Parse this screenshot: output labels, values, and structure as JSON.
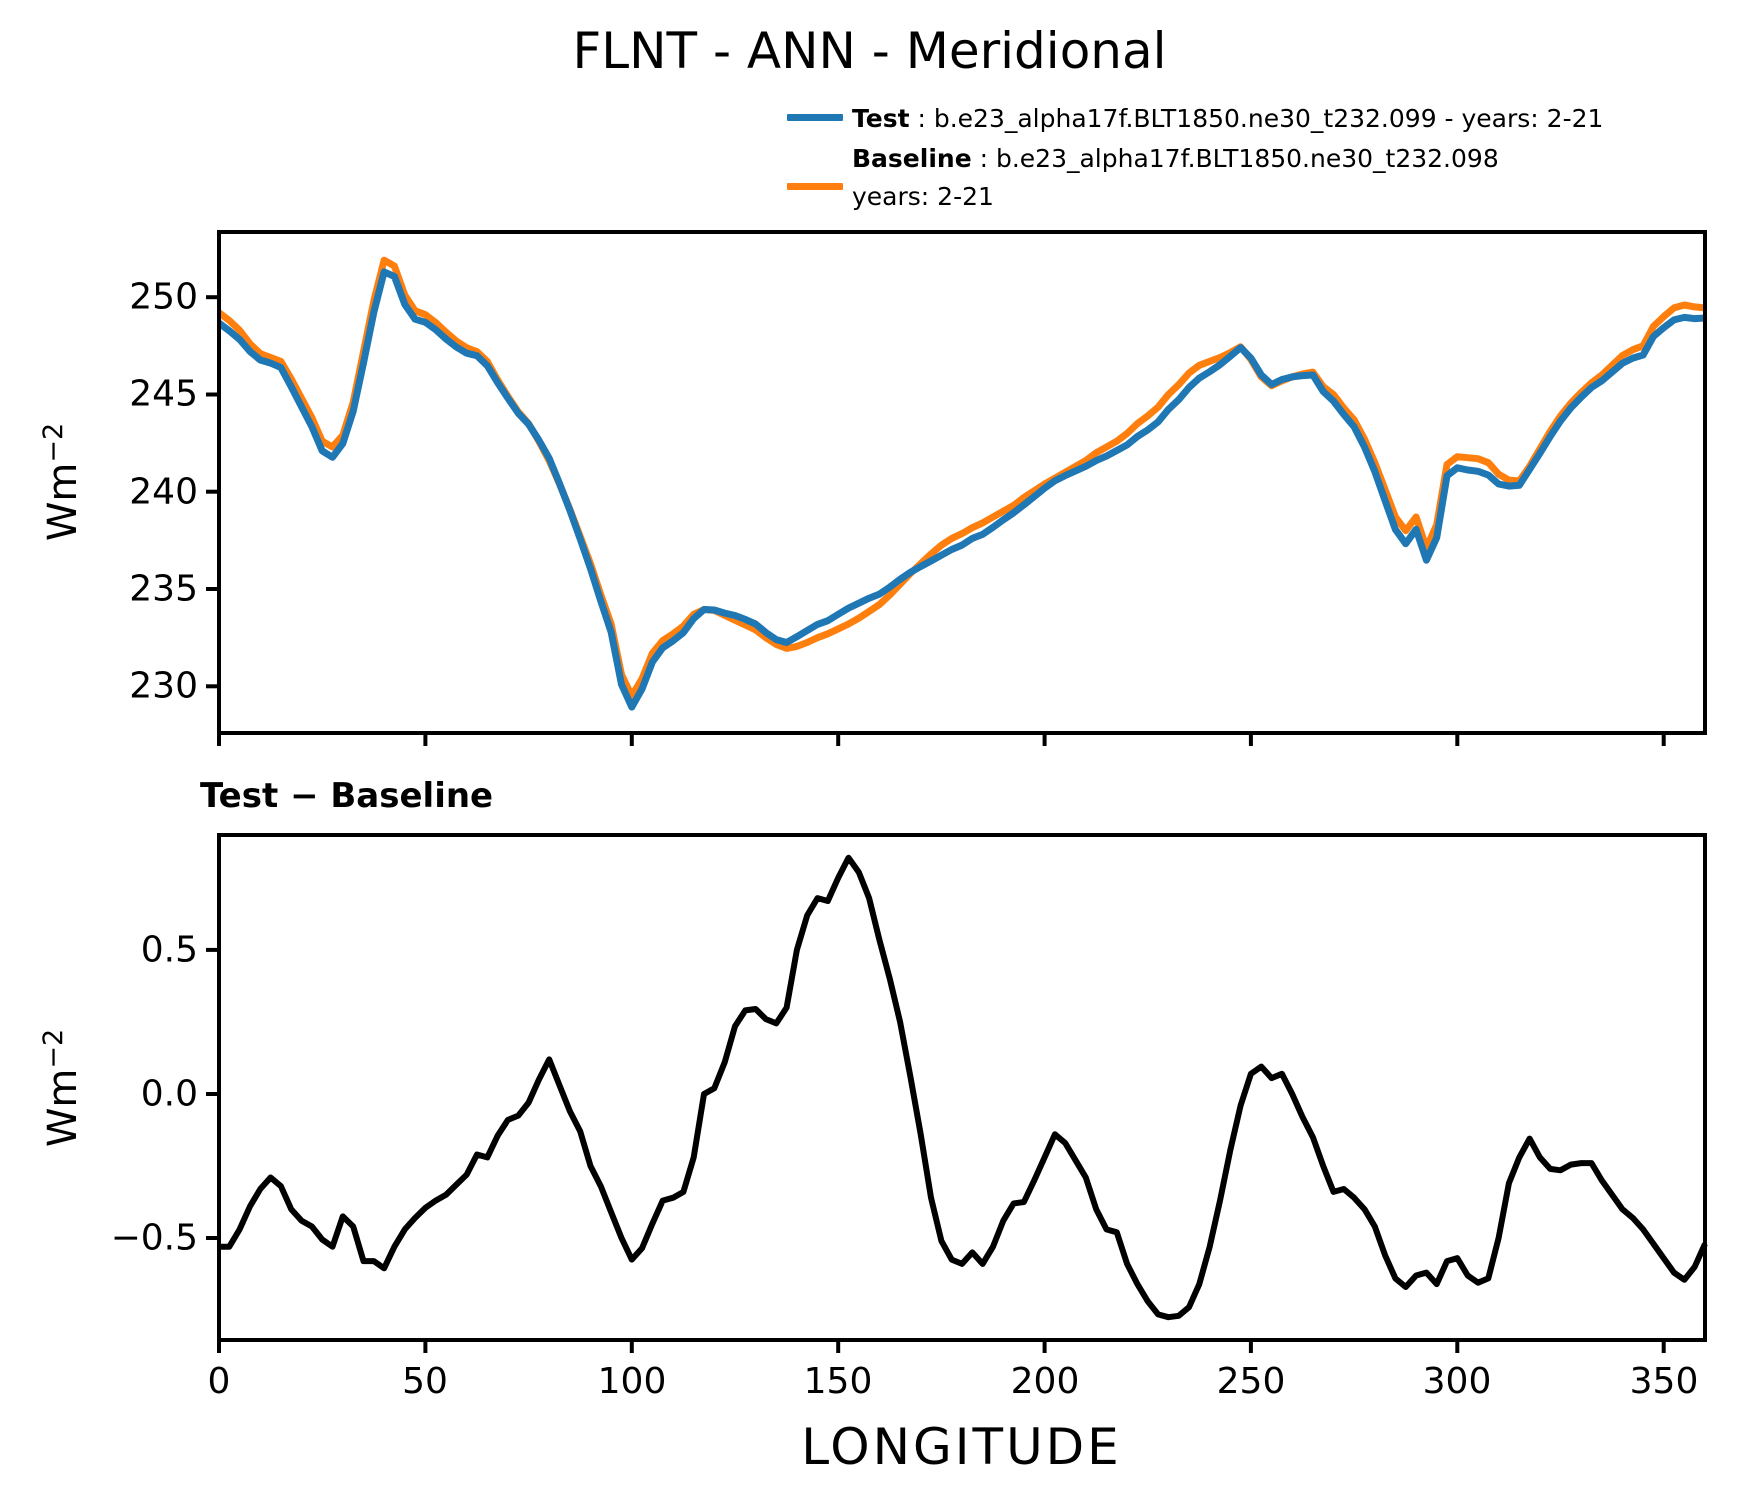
{
  "title": "FLNT - ANN - Meridional",
  "subtitle": "Test − Baseline",
  "legend": {
    "test": {
      "label_bold": "Test",
      "label_rest": " : b.e23_alpha17f.BLT1850.ne30_t232.099 - years: 2-21",
      "color": "#1f77b4"
    },
    "baseline": {
      "label_bold": "Baseline",
      "label_rest": " : b.e23_alpha17f.BLT1850.ne30_t232.098",
      "label_line2": "years: 2-21",
      "color": "#ff7f0e"
    }
  },
  "axes": {
    "top": {
      "ylabel": "Wm",
      "ylabel_sup": "−2"
    },
    "bottom": {
      "ylabel": "Wm",
      "ylabel_sup": "−2",
      "xlabel": "LONGITUDE"
    }
  },
  "chart_data": [
    {
      "type": "line",
      "title": "FLNT - ANN - Meridional",
      "xlabel": "",
      "ylabel": "Wm^-2",
      "xlim": [
        0,
        360
      ],
      "ylim": [
        227.6,
        253.35
      ],
      "grid": false,
      "legend_position": "top-right-outside",
      "yticks": [
        250,
        245,
        240,
        235,
        230
      ],
      "ytick_labels": [
        "250",
        "245",
        "240",
        "235",
        "230"
      ],
      "xticks": [
        0,
        50,
        100,
        150,
        200,
        250,
        300,
        350
      ],
      "xtick_labels": [],
      "x": [
        0,
        2.5,
        5,
        7.5,
        10,
        12.5,
        15,
        17.5,
        20,
        22.5,
        25,
        27.5,
        30,
        32.5,
        35,
        37.5,
        40,
        42.5,
        45,
        47.5,
        50,
        52.5,
        55,
        57.5,
        60,
        62.5,
        65,
        67.5,
        70,
        72.5,
        75,
        77.5,
        80,
        82.5,
        85,
        87.5,
        90,
        92.5,
        95,
        97.5,
        100,
        102.5,
        105,
        107.5,
        110,
        112.5,
        115,
        117.5,
        120,
        122.5,
        125,
        127.5,
        130,
        132.5,
        135,
        137.5,
        140,
        142.5,
        145,
        147.5,
        150,
        152.5,
        155,
        157.5,
        160,
        162.5,
        165,
        167.5,
        170,
        172.5,
        175,
        177.5,
        180,
        182.5,
        185,
        187.5,
        190,
        192.5,
        195,
        197.5,
        200,
        202.5,
        205,
        207.5,
        210,
        212.5,
        215,
        217.5,
        220,
        222.5,
        225,
        227.5,
        230,
        232.5,
        235,
        237.5,
        240,
        242.5,
        245,
        247.5,
        250,
        252.5,
        255,
        257.5,
        260,
        262.5,
        265,
        267.5,
        270,
        272.5,
        275,
        277.5,
        280,
        282.5,
        285,
        287.5,
        290,
        292.5,
        295,
        297.5,
        300,
        302.5,
        305,
        307.5,
        310,
        312.5,
        315,
        317.5,
        320,
        322.5,
        325,
        327.5,
        330,
        332.5,
        335,
        337.5,
        340,
        342.5,
        345,
        347.5,
        350,
        352.5,
        355,
        357.5,
        360
      ],
      "series": [
        {
          "name": "Test",
          "color": "#1f77b4",
          "values": [
            248.67,
            248.27,
            247.83,
            247.21,
            246.77,
            246.61,
            246.38,
            245.4,
            244.36,
            243.34,
            242.1,
            241.77,
            242.48,
            244.14,
            246.62,
            249.22,
            251.3,
            251.07,
            249.63,
            248.87,
            248.71,
            248.33,
            247.85,
            247.44,
            247.12,
            246.99,
            246.48,
            245.61,
            244.81,
            244.03,
            243.47,
            242.65,
            241.72,
            240.43,
            239.04,
            237.57,
            236.05,
            234.38,
            232.79,
            230.1,
            228.93,
            229.87,
            231.25,
            231.98,
            232.34,
            232.76,
            233.48,
            233.95,
            233.92,
            233.76,
            233.64,
            233.44,
            233.2,
            232.76,
            232.4,
            232.25,
            232.55,
            232.87,
            233.18,
            233.37,
            233.7,
            234.02,
            234.27,
            234.53,
            234.74,
            235.1,
            235.5,
            235.86,
            236.16,
            236.44,
            236.74,
            237.03,
            237.26,
            237.6,
            237.81,
            238.17,
            238.56,
            238.92,
            239.33,
            239.75,
            240.18,
            240.56,
            240.83,
            241.07,
            241.31,
            241.6,
            241.83,
            242.12,
            242.41,
            242.84,
            243.18,
            243.59,
            244.23,
            244.73,
            245.36,
            245.84,
            246.17,
            246.53,
            246.96,
            247.41,
            246.87,
            246.0,
            245.51,
            245.77,
            245.9,
            245.97,
            246.0,
            245.15,
            244.66,
            243.97,
            243.34,
            242.3,
            241.04,
            239.54,
            238.06,
            237.33,
            238.07,
            236.48,
            237.64,
            240.82,
            241.23,
            241.12,
            241.05,
            240.86,
            240.4,
            240.29,
            240.33,
            241.15,
            241.98,
            242.84,
            243.64,
            244.31,
            244.86,
            245.36,
            245.7,
            246.15,
            246.6,
            246.87,
            247.03,
            247.98,
            248.43,
            248.83,
            248.96,
            248.9,
            248.93
          ]
        },
        {
          "name": "Baseline",
          "color": "#ff7f0e",
          "values": [
            249.2,
            248.8,
            248.3,
            247.6,
            247.1,
            246.9,
            246.7,
            245.8,
            244.8,
            243.8,
            242.6,
            242.3,
            242.9,
            244.6,
            247.2,
            249.8,
            251.9,
            251.6,
            250.1,
            249.3,
            249.1,
            248.7,
            248.2,
            247.75,
            247.4,
            247.2,
            246.7,
            245.75,
            244.9,
            244.1,
            243.5,
            242.6,
            241.6,
            240.4,
            239.1,
            237.7,
            236.3,
            234.7,
            233.2,
            230.6,
            229.5,
            230.4,
            231.7,
            232.35,
            232.7,
            233.1,
            233.7,
            233.95,
            233.9,
            233.65,
            233.4,
            233.15,
            232.9,
            232.5,
            232.15,
            231.95,
            232.05,
            232.25,
            232.5,
            232.7,
            232.95,
            233.2,
            233.5,
            233.85,
            234.2,
            234.7,
            235.25,
            235.8,
            236.3,
            236.8,
            237.25,
            237.6,
            237.85,
            238.15,
            238.4,
            238.7,
            239.0,
            239.3,
            239.7,
            240.05,
            240.4,
            240.7,
            241.0,
            241.3,
            241.6,
            242.0,
            242.3,
            242.6,
            243.0,
            243.5,
            243.9,
            244.35,
            245.0,
            245.5,
            246.1,
            246.5,
            246.7,
            246.9,
            247.15,
            247.45,
            246.8,
            245.9,
            245.45,
            245.7,
            245.9,
            246.05,
            246.15,
            245.4,
            245.0,
            244.3,
            243.7,
            242.7,
            241.5,
            240.1,
            238.7,
            238.0,
            238.7,
            237.1,
            238.3,
            241.4,
            241.8,
            241.75,
            241.7,
            241.5,
            240.9,
            240.6,
            240.55,
            241.3,
            242.2,
            243.1,
            243.9,
            244.55,
            245.1,
            245.6,
            246.0,
            246.5,
            247.0,
            247.3,
            247.5,
            248.5,
            249.0,
            249.45,
            249.6,
            249.5,
            249.45
          ]
        }
      ]
    },
    {
      "type": "line",
      "title": "Test − Baseline",
      "xlabel": "LONGITUDE",
      "ylabel": "Wm^-2",
      "xlim": [
        0,
        360
      ],
      "ylim": [
        -0.854,
        0.899
      ],
      "grid": false,
      "yticks": [
        0.5,
        0.0,
        -0.5
      ],
      "ytick_labels": [
        "0.5",
        "0.0",
        "−0.5"
      ],
      "xticks": [
        0,
        50,
        100,
        150,
        200,
        250,
        300,
        350
      ],
      "xtick_labels": [
        "0",
        "50",
        "100",
        "150",
        "200",
        "250",
        "300",
        "350"
      ],
      "x": [
        0,
        2.5,
        5,
        7.5,
        10,
        12.5,
        15,
        17.5,
        20,
        22.5,
        25,
        27.5,
        30,
        32.5,
        35,
        37.5,
        40,
        42.5,
        45,
        47.5,
        50,
        52.5,
        55,
        57.5,
        60,
        62.5,
        65,
        67.5,
        70,
        72.5,
        75,
        77.5,
        80,
        82.5,
        85,
        87.5,
        90,
        92.5,
        95,
        97.5,
        100,
        102.5,
        105,
        107.5,
        110,
        112.5,
        115,
        117.5,
        120,
        122.5,
        125,
        127.5,
        130,
        132.5,
        135,
        137.5,
        140,
        142.5,
        145,
        147.5,
        150,
        152.5,
        155,
        157.5,
        160,
        162.5,
        165,
        167.5,
        170,
        172.5,
        175,
        177.5,
        180,
        182.5,
        185,
        187.5,
        190,
        192.5,
        195,
        197.5,
        200,
        202.5,
        205,
        207.5,
        210,
        212.5,
        215,
        217.5,
        220,
        222.5,
        225,
        227.5,
        230,
        232.5,
        235,
        237.5,
        240,
        242.5,
        245,
        247.5,
        250,
        252.5,
        255,
        257.5,
        260,
        262.5,
        265,
        267.5,
        270,
        272.5,
        275,
        277.5,
        280,
        282.5,
        285,
        287.5,
        290,
        292.5,
        295,
        297.5,
        300,
        302.5,
        305,
        307.5,
        310,
        312.5,
        315,
        317.5,
        320,
        322.5,
        325,
        327.5,
        330,
        332.5,
        335,
        337.5,
        340,
        342.5,
        345,
        347.5,
        350,
        352.5,
        355,
        357.5,
        360
      ],
      "series": [
        {
          "name": "Test − Baseline",
          "color": "#000000",
          "values": [
            -0.53,
            -0.53,
            -0.47,
            -0.39,
            -0.33,
            -0.29,
            -0.32,
            -0.4,
            -0.44,
            -0.46,
            -0.505,
            -0.53,
            -0.425,
            -0.46,
            -0.58,
            -0.58,
            -0.605,
            -0.53,
            -0.47,
            -0.43,
            -0.395,
            -0.37,
            -0.35,
            -0.315,
            -0.28,
            -0.21,
            -0.22,
            -0.145,
            -0.09,
            -0.075,
            -0.03,
            0.05,
            0.12,
            0.03,
            -0.06,
            -0.13,
            -0.25,
            -0.32,
            -0.41,
            -0.5,
            -0.575,
            -0.535,
            -0.45,
            -0.37,
            -0.36,
            -0.34,
            -0.22,
            0.0,
            0.02,
            0.11,
            0.235,
            0.29,
            0.295,
            0.26,
            0.245,
            0.3,
            0.5,
            0.62,
            0.68,
            0.67,
            0.75,
            0.82,
            0.77,
            0.68,
            0.535,
            0.4,
            0.25,
            0.06,
            -0.14,
            -0.36,
            -0.51,
            -0.575,
            -0.59,
            -0.55,
            -0.59,
            -0.53,
            -0.44,
            -0.38,
            -0.375,
            -0.3,
            -0.22,
            -0.14,
            -0.17,
            -0.23,
            -0.29,
            -0.4,
            -0.47,
            -0.48,
            -0.59,
            -0.66,
            -0.72,
            -0.765,
            -0.775,
            -0.77,
            -0.74,
            -0.66,
            -0.53,
            -0.37,
            -0.195,
            -0.04,
            0.07,
            0.095,
            0.055,
            0.07,
            0.0,
            -0.08,
            -0.15,
            -0.25,
            -0.34,
            -0.33,
            -0.36,
            -0.4,
            -0.46,
            -0.56,
            -0.64,
            -0.67,
            -0.63,
            -0.62,
            -0.66,
            -0.58,
            -0.57,
            -0.63,
            -0.655,
            -0.64,
            -0.5,
            -0.31,
            -0.22,
            -0.155,
            -0.22,
            -0.26,
            -0.265,
            -0.245,
            -0.24,
            -0.24,
            -0.3,
            -0.35,
            -0.4,
            -0.43,
            -0.47,
            -0.52,
            -0.57,
            -0.62,
            -0.645,
            -0.6,
            -0.52
          ]
        }
      ]
    }
  ]
}
